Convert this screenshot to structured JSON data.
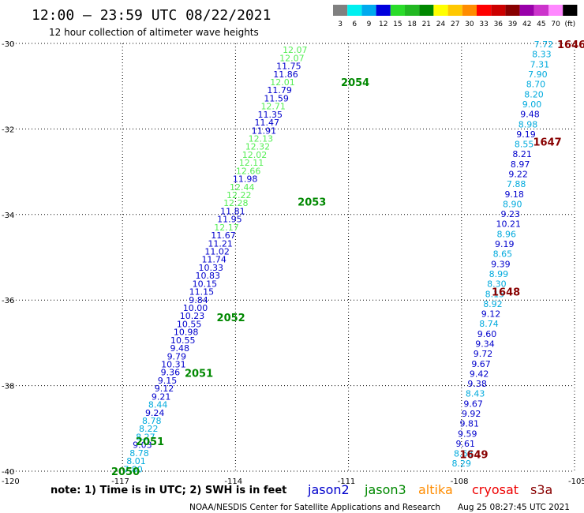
{
  "header": {
    "title": "12:00 – 23:59 UTC 08/22/2021",
    "subtitle": "12 hour collection of altimeter wave heights"
  },
  "colorbar": {
    "labels": [
      "3",
      "6",
      "9",
      "12",
      "15",
      "18",
      "21",
      "24",
      "27",
      "30",
      "33",
      "36",
      "39",
      "42",
      "45",
      "70",
      "(ft)"
    ],
    "colors": [
      "#808080",
      "#00f0f0",
      "#00aaee",
      "#0000dd",
      "#2adc2a",
      "#22b822",
      "#008800",
      "#ffff00",
      "#ffc800",
      "#ff8c00",
      "#ff0000",
      "#cc0000",
      "#880000",
      "#9900aa",
      "#cc33cc",
      "#ff88ff",
      "#000000"
    ]
  },
  "chart_data": {
    "type": "scatter",
    "xlim": [
      -120,
      -105
    ],
    "ylim": [
      -40,
      -30
    ],
    "x_ticks": [
      -117,
      -114,
      -111,
      -108,
      -105
    ],
    "y_ticks": [
      -30,
      -32,
      -34,
      -36,
      -38,
      -40
    ],
    "x_tick_labels": [
      "-117",
      "-114",
      "-111",
      "-108",
      "-105"
    ],
    "y_tick_labels": [
      "-30",
      "-32",
      "-34",
      "-36",
      "-38",
      "-40"
    ],
    "corner_label": "-120",
    "grid": true,
    "track_colors": {
      "lt": "#55ee55",
      "db": "#0000cc",
      "mb": "#00aadd"
    },
    "tracks": [
      {
        "name": "west",
        "x_start": -112.42,
        "x_end": -116.72,
        "y_start": -30.15,
        "y_end": -39.95,
        "values": [
          "12.07",
          "12.07",
          "11.75",
          "11.86",
          "12.01",
          "11.79",
          "11.59",
          "12.71",
          "11.35",
          "11.47",
          "11.91",
          "12.13",
          "12.32",
          "12.02",
          "12.11",
          "12.66",
          "11.98",
          "12.44",
          "12.22",
          "12.28",
          "11.81",
          "11.95",
          "12.17",
          "11.67",
          "11.21",
          "11.02",
          "11.74",
          "10.33",
          "10.83",
          "10.15",
          "11.15",
          "9.84",
          "10.00",
          "10.23",
          "10.55",
          "10.98",
          "10.55",
          "9.48",
          "9.79",
          "10.31",
          "9.36",
          "9.15",
          "9.12",
          "9.21",
          "8.44",
          "9.24",
          "8.78",
          "8.22",
          "8.27",
          "9.03",
          "8.78",
          "8.01",
          "7.80"
        ],
        "colors": [
          "lt",
          "lt",
          "db",
          "db",
          "lt",
          "db",
          "db",
          "lt",
          "db",
          "db",
          "db",
          "lt",
          "lt",
          "lt",
          "lt",
          "lt",
          "db",
          "lt",
          "lt",
          "lt",
          "db",
          "db",
          "lt",
          "db",
          "db",
          "db",
          "db",
          "db",
          "db",
          "db",
          "db",
          "db",
          "db",
          "db",
          "db",
          "db",
          "db",
          "db",
          "db",
          "db",
          "db",
          "db",
          "db",
          "db",
          "mb",
          "db",
          "mb",
          "mb",
          "mb",
          "db",
          "mb",
          "mb",
          "mb"
        ]
      },
      {
        "name": "east",
        "x_start": -105.82,
        "x_end": -108.0,
        "y_start": -30.02,
        "y_end": -39.82,
        "values": [
          "7.72",
          "8.33",
          "7.31",
          "7.90",
          "8.70",
          "8.20",
          "9.00",
          "9.48",
          "8.98",
          "9.19",
          "8.55",
          "8.21",
          "8.97",
          "9.22",
          "7.88",
          "9.18",
          "8.90",
          "9.23",
          "10.21",
          "8.96",
          "9.19",
          "8.65",
          "9.39",
          "8.99",
          "8.30",
          "8.15",
          "8.92",
          "9.12",
          "8.74",
          "9.60",
          "9.34",
          "9.72",
          "9.67",
          "9.42",
          "9.38",
          "8.43",
          "9.67",
          "9.92",
          "9.81",
          "9.59",
          "9.61",
          "8.63",
          "8.29"
        ],
        "colors": [
          "mb",
          "mb",
          "mb",
          "mb",
          "mb",
          "mb",
          "mb",
          "db",
          "mb",
          "db",
          "mb",
          "db",
          "db",
          "db",
          "mb",
          "db",
          "mb",
          "db",
          "db",
          "mb",
          "db",
          "mb",
          "db",
          "mb",
          "mb",
          "mb",
          "mb",
          "db",
          "mb",
          "db",
          "db",
          "db",
          "db",
          "db",
          "db",
          "mb",
          "db",
          "db",
          "db",
          "db",
          "db",
          "mb",
          "mb"
        ]
      }
    ],
    "pass_labels": [
      {
        "text": "2054",
        "x": -111.2,
        "y": -30.9,
        "color": "#008800"
      },
      {
        "text": "2053",
        "x": -112.35,
        "y": -33.7,
        "color": "#008800"
      },
      {
        "text": "2052",
        "x": -114.5,
        "y": -36.4,
        "color": "#008800"
      },
      {
        "text": "2051",
        "x": -115.35,
        "y": -37.7,
        "color": "#008800"
      },
      {
        "text": "2051",
        "x": -116.65,
        "y": -39.3,
        "color": "#008800"
      },
      {
        "text": "2050",
        "x": -117.3,
        "y": -40.0,
        "color": "#008800"
      },
      {
        "text": "1646",
        "x": -105.0,
        "y": -30.02,
        "color": "#880000"
      },
      {
        "text": "1647",
        "x": -106.1,
        "y": -32.3,
        "color": "#880000"
      },
      {
        "text": "1648",
        "x": -107.2,
        "y": -35.8,
        "color": "#880000"
      },
      {
        "text": "1649",
        "x": -108.05,
        "y": -39.6,
        "color": "#880000"
      }
    ]
  },
  "note": "note: 1) Time is in UTC; 2) SWH is in feet",
  "legend": [
    {
      "label": "jason2",
      "color": "#0000cc"
    },
    {
      "label": "jason3",
      "color": "#008800"
    },
    {
      "label": "altika",
      "color": "#ff8c00"
    },
    {
      "label": "cryosat",
      "color": "#ee0000"
    },
    {
      "label": "s3a",
      "color": "#880000"
    }
  ],
  "footer": {
    "credit": "NOAA/NESDIS Center for Satellite Applications and Research",
    "timestamp": "Aug 25 08:27:45 UTC 2021"
  }
}
